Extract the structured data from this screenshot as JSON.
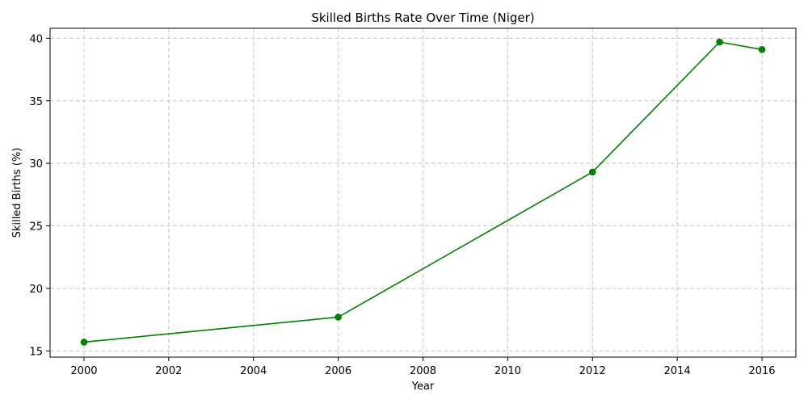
{
  "chart_data": {
    "type": "line",
    "title": "Skilled Births Rate Over Time (Niger)",
    "xlabel": "Year",
    "ylabel": "Skilled Births (%)",
    "x": [
      2000,
      2006,
      2012,
      2015,
      2016
    ],
    "series": [
      {
        "values": [
          15.7,
          17.7,
          29.3,
          39.7,
          39.1
        ],
        "color": "#008000",
        "marker": "circle"
      }
    ],
    "xlim": [
      1999.2,
      2016.8
    ],
    "ylim": [
      14.5,
      40.8
    ],
    "x_ticks": [
      2000,
      2002,
      2004,
      2006,
      2008,
      2010,
      2012,
      2014,
      2016
    ],
    "y_ticks": [
      15,
      20,
      25,
      30,
      35,
      40
    ],
    "grid": true,
    "grid_style": "dashed",
    "legend": "none"
  }
}
